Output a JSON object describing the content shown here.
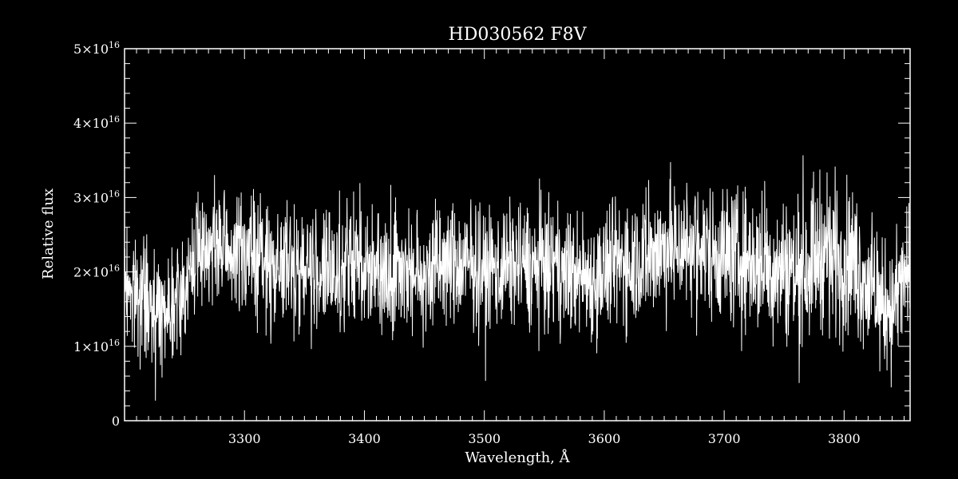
{
  "chart_data": {
    "type": "line",
    "title": "HD030562  F8V",
    "xlabel": "Wavelength, Å",
    "ylabel": "Relative flux",
    "xlim": [
      3200,
      3855
    ],
    "ylim": [
      0,
      5e+16
    ],
    "x_ticks": [
      3300,
      3400,
      3500,
      3600,
      3700,
      3800
    ],
    "x_tick_labels": [
      "3300",
      "3400",
      "3500",
      "3600",
      "3700",
      "3800"
    ],
    "y_ticks": [
      0,
      1e+16,
      2e+16,
      3e+16,
      4e+16,
      5e+16
    ],
    "y_tick_labels": [
      {
        "mantissa": "0",
        "times": "",
        "base": "",
        "exp": ""
      },
      {
        "mantissa": "1",
        "times": "×",
        "base": "10",
        "exp": "16"
      },
      {
        "mantissa": "2",
        "times": "×",
        "base": "10",
        "exp": "16"
      },
      {
        "mantissa": "3",
        "times": "×",
        "base": "10",
        "exp": "16"
      },
      {
        "mantissa": "4",
        "times": "×",
        "base": "10",
        "exp": "16"
      },
      {
        "mantissa": "5",
        "times": "×",
        "base": "10",
        "exp": "16"
      }
    ],
    "grid": false,
    "line_color": "#ffffff",
    "background": "#000000",
    "series": [
      {
        "x": [
          3200,
          3210,
          3220,
          3230,
          3240,
          3250,
          3260,
          3270,
          3280,
          3290,
          3300,
          3310,
          3320,
          3330,
          3340,
          3350,
          3360,
          3370,
          3380,
          3390,
          3400,
          3410,
          3420,
          3430,
          3440,
          3450,
          3460,
          3470,
          3480,
          3490,
          3500,
          3510,
          3520,
          3530,
          3540,
          3550,
          3560,
          3570,
          3580,
          3590,
          3600,
          3610,
          3620,
          3630,
          3640,
          3650,
          3660,
          3670,
          3680,
          3690,
          3700,
          3710,
          3720,
          3730,
          3740,
          3750,
          3760,
          3770,
          3780,
          3790,
          3800,
          3810,
          3820,
          3830,
          3840,
          3850,
          3855
        ],
        "mean": [
          1.9e+16,
          1.7e+16,
          1.55e+16,
          1.5e+16,
          1.6e+16,
          1.75e+16,
          2.3e+16,
          2.35e+16,
          2.3e+16,
          2.25e+16,
          2.3e+16,
          2.2e+16,
          2.1e+16,
          2.05e+16,
          2.1e+16,
          2.05e+16,
          2e+16,
          1.95e+16,
          2e+16,
          2.1e+16,
          2.15e+16,
          2e+16,
          2.05e+16,
          2.1e+16,
          2e+16,
          1.95e+16,
          2.05e+16,
          2.1e+16,
          2.05e+16,
          2.1e+16,
          2e+16,
          2.05e+16,
          2.1e+16,
          2.15e+16,
          2.05e+16,
          2.1e+16,
          2.05e+16,
          1.95e+16,
          2e+16,
          1.9e+16,
          2e+16,
          2.1e+16,
          2.15e+16,
          2.2e+16,
          2.25e+16,
          2.3e+16,
          2.35e+16,
          2.35e+16,
          2.3e+16,
          2.3e+16,
          2.25e+16,
          2.2e+16,
          2.15e+16,
          2.1e+16,
          2.1e+16,
          2.05e+16,
          2e+16,
          2.1e+16,
          2.3e+16,
          2.25e+16,
          2.2e+16,
          2.1e+16,
          1.8e+16,
          1.6e+16,
          1.5e+16,
          1.9e+16,
          2e+16
        ],
        "spread": [
          1.1e+16,
          1.1e+16,
          1.1e+16,
          1e+16,
          1e+16,
          1e+16,
          1.1e+16,
          1.1e+16,
          1.15e+16,
          1.15e+16,
          1.2e+16,
          1.2e+16,
          1.2e+16,
          1.2e+16,
          1.2e+16,
          1.2e+16,
          1.2e+16,
          1.2e+16,
          1.2e+16,
          1.2e+16,
          1.2e+16,
          1.2e+16,
          1.2e+16,
          1.2e+16,
          1.2e+16,
          1.2e+16,
          1.2e+16,
          1.2e+16,
          1.2e+16,
          1.2e+16,
          1.2e+16,
          1.2e+16,
          1.2e+16,
          1.2e+16,
          1.2e+16,
          1.2e+16,
          1.2e+16,
          1.2e+16,
          1.2e+16,
          1.2e+16,
          1.2e+16,
          1.25e+16,
          1.3e+16,
          1.3e+16,
          1.3e+16,
          1.3e+16,
          1.3e+16,
          1.3e+16,
          1.3e+16,
          1.3e+16,
          1.35e+16,
          1.35e+16,
          1.35e+16,
          1.35e+16,
          1.4e+16,
          1.4e+16,
          1.4e+16,
          1.4e+16,
          1.5e+16,
          1.5e+16,
          1.5e+16,
          1.45e+16,
          1.3e+16,
          1.2e+16,
          1.2e+16,
          1.3e+16,
          1.3e+16
        ],
        "samples_per_angstrom": 4
      }
    ]
  }
}
